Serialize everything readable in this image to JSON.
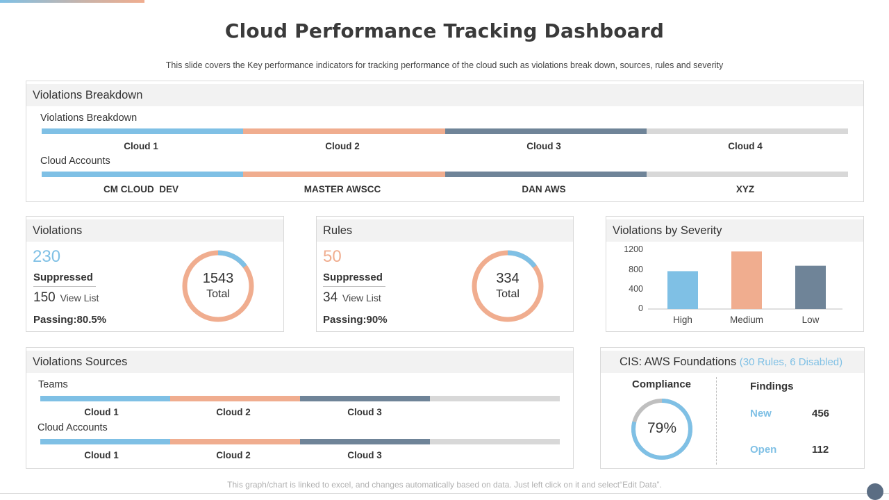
{
  "title": "Cloud Performance Tracking Dashboard",
  "subtitle": "This slide covers the Key performance  indicators for tracking performance  of the cloud such as violations  break down,  sources, rules and severity",
  "colors": {
    "blue": "#7fc0e5",
    "orange": "#f0ad8f",
    "slate": "#6f8498",
    "gray": "#d8d8d8"
  },
  "breakdown": {
    "header": "Violations Breakdown",
    "row1_title": "Violations Breakdown",
    "row1_labels": [
      "Cloud 1",
      "Cloud 2",
      "Cloud 3",
      "Cloud 4"
    ],
    "row2_title": "Cloud Accounts",
    "row2_labels": [
      "CM CLOUD  DEV",
      "MASTER AWSCC",
      "DAN AWS",
      "XYZ"
    ]
  },
  "violations": {
    "header": "Violations",
    "count": "230",
    "suppressed_label": "Suppressed",
    "suppressed_count": "150",
    "view_list": "View List",
    "passing": "Passing:80.5%",
    "donut_total": "1543",
    "donut_total_label": "Total",
    "donut_highlight_fraction": 0.149
  },
  "rules": {
    "header": "Rules",
    "count": "50",
    "suppressed_label": "Suppressed",
    "suppressed_count": "34",
    "view_list": "View List",
    "passing": "Passing:90%",
    "donut_total": "334",
    "donut_total_label": "Total",
    "donut_highlight_fraction": 0.15
  },
  "severity": {
    "header": "Violations by Severity",
    "chart_data": {
      "type": "bar",
      "categories": [
        "High",
        "Medium",
        "Low"
      ],
      "values": [
        770,
        1170,
        880
      ],
      "ylim": [
        0,
        1200
      ],
      "yticks": [
        "1200",
        "800",
        "400",
        "0"
      ],
      "bar_colors": [
        "#7fc0e5",
        "#f0ad8f",
        "#6f8498"
      ]
    }
  },
  "sources": {
    "header": "Violations Sources",
    "row1_title": "Teams",
    "row1_labels": [
      "Cloud 1",
      "Cloud 2",
      "Cloud 3"
    ],
    "row2_title": "Cloud Accounts",
    "row2_labels": [
      "Cloud 1",
      "Cloud 2",
      "Cloud 3"
    ]
  },
  "cis": {
    "header_main": "CIS: AWS Foundations",
    "header_extra": "(30 Rules, 6 Disabled)",
    "compliance_label": "Compliance",
    "compliance_value": "79%",
    "compliance_fraction": 0.79,
    "findings_label": "Findings",
    "new_label": "New",
    "new_value": "456",
    "open_label": "Open",
    "open_value": "112"
  },
  "footer": "This graph/chart is linked to excel,  and changes automatically based on data. Just left click on it and select“Edit Data”."
}
